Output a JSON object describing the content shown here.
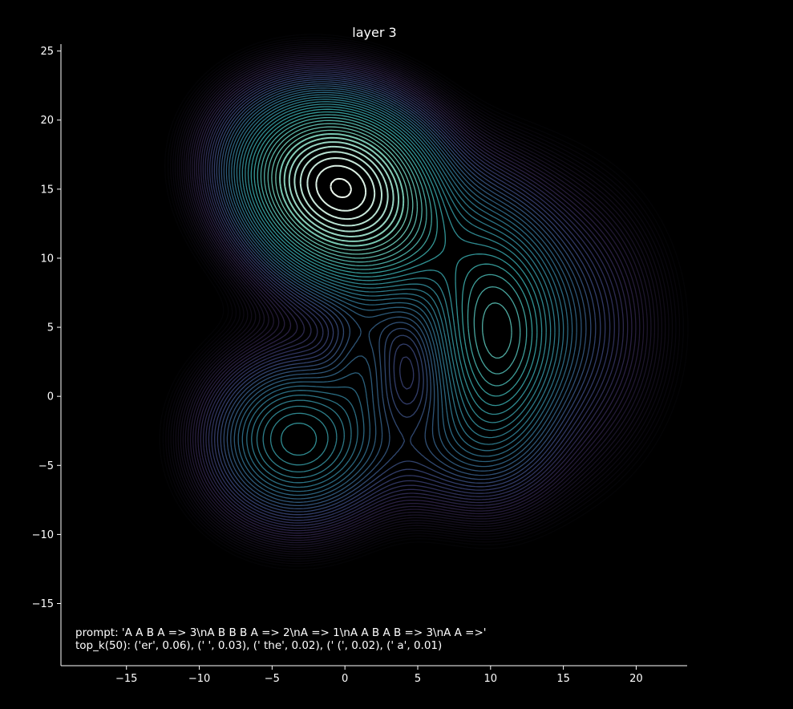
{
  "chart_data": {
    "type": "contour",
    "title": "layer 3",
    "xlabel": "",
    "ylabel": "",
    "xlim": [
      -19.5,
      23.5
    ],
    "ylim": [
      -19.5,
      25.5
    ],
    "xticks": [
      -15,
      -10,
      -5,
      0,
      5,
      10,
      15,
      20
    ],
    "yticks": [
      -15,
      -10,
      -5,
      0,
      5,
      10,
      15,
      20,
      25
    ],
    "grid": false,
    "background": "#000000",
    "foreground": "#ffffff",
    "colormap": [
      "#0b0b10",
      "#2a1f3d",
      "#4d3a78",
      "#4f5fa8",
      "#3a8fb0",
      "#3bb6b6",
      "#7fd9c0",
      "#f0faf0"
    ],
    "contour_levels": 52,
    "components": [
      {
        "center": [
          0,
          15.2
        ],
        "sigma": [
          3.5,
          3.5
        ],
        "weight": 1.0
      },
      {
        "center": [
          3.0,
          11.5
        ],
        "sigma": [
          4.5,
          4.0
        ],
        "weight": 0.35
      },
      {
        "center": [
          -3.5,
          17.0
        ],
        "sigma": [
          3.5,
          3.5
        ],
        "weight": 0.35
      },
      {
        "center": [
          10.2,
          4.2
        ],
        "sigma": [
          2.6,
          5.2
        ],
        "weight": 0.45
      },
      {
        "center": [
          13.5,
          5.0
        ],
        "sigma": [
          4.5,
          6.0
        ],
        "weight": 0.2
      },
      {
        "center": [
          -3.3,
          -3.1
        ],
        "sigma": [
          3.7,
          3.7
        ],
        "weight": 0.42
      },
      {
        "center": [
          1.3,
          2.5
        ],
        "sigma": [
          1.6,
          2.6
        ],
        "weight": 0.12
      },
      {
        "center": [
          7.0,
          -4.0
        ],
        "sigma": [
          4.0,
          3.0
        ],
        "weight": 0.12
      }
    ],
    "annotations": [
      "prompt: 'A A B A => 3\\nA B B B A => 2\\nA => 1\\nA A B A B => 3\\nA A =>'",
      "top_k(50): ('er', 0.06), (' ', 0.03), (' the', 0.02), (' (', 0.02), (' a', 0.01)"
    ]
  }
}
